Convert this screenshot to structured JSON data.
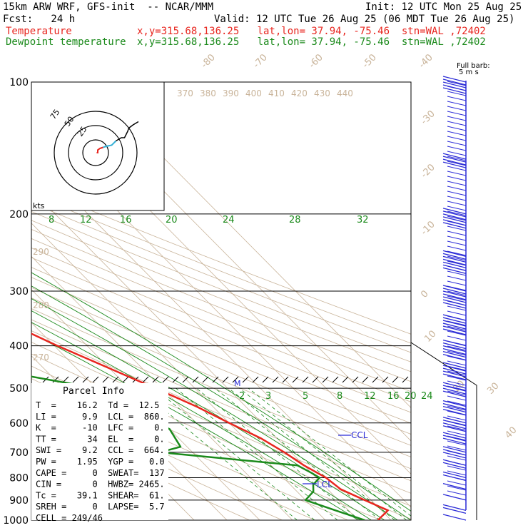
{
  "header": {
    "model": "15km ARW WRF, GFS-init  -- NCAR/MMM",
    "init": "Init: 12 UTC Mon 25 Aug 25",
    "fcst": "Fcst:   24 h",
    "valid": "Valid: 12 UTC Tue 26 Aug 25 (06 MDT Tue 26 Aug 25)",
    "temp_label": "Temperature",
    "temp_loc": "x,y=315.68,136.25   lat,lon= 37.94, -75.46  stn=WAL ,72402",
    "dew_label": "Dewpoint temperature",
    "dew_loc": "x,y=315.68,136.25   lat,lon= 37.94, -75.46  stn=WAL ,72402",
    "barb_note_1": "Full barb:",
    "barb_note_2": "5 m s",
    "hodo_units": "kts",
    "ccl_label": "CCL",
    "lcl_label": "LCL",
    "m_label": "M"
  },
  "colors": {
    "temperature": "#e8261f",
    "dewpoint": "#1b8a1b",
    "isotherm": "#c9b49a",
    "wind": "#2a2ad6",
    "hodograph": "#000000"
  },
  "parcel_info": {
    "title": "Parcel Info",
    "rows": [
      "T  =    16.2  Td =  12.5",
      "LI =     9.9  LCL =  860.",
      "K  =     -10  LFC =    0.",
      "TT =      34  EL  =    0.",
      "SWI =    9.2  CCL =  664.",
      "PW =    1.95  YGP =   0.0",
      "CAPE =     0  SWEAT=  137",
      "CIN =      0  HWBZ= 2465.",
      "Tc =    39.1  SHEAR=  61.",
      "SREH =     0  LAPSE=  5.7",
      "CELL = 249/46"
    ]
  },
  "chart_data": {
    "type": "line",
    "pressure_levels": [
      100,
      200,
      300,
      400,
      500,
      600,
      700,
      800,
      900,
      1000
    ],
    "isotherm_labels": [
      -80,
      -70,
      -60,
      -50,
      -40,
      -30,
      -20,
      -10,
      0,
      10,
      20,
      30,
      40
    ],
    "theta_labels_top": [
      370,
      380,
      390,
      400,
      410,
      420,
      430,
      440
    ],
    "theta_labels_left": [
      290,
      280,
      270
    ],
    "mixing_ratio_labels_200": [
      8,
      12,
      16,
      20,
      24,
      28,
      32
    ],
    "mixing_ratio_labels_500": [
      2,
      3,
      5,
      8,
      12,
      16,
      20,
      24
    ],
    "hodograph_ring_labels": [
      75,
      50,
      25
    ],
    "series": [
      {
        "name": "Temperature",
        "pressure": [
          100,
          120,
          150,
          175,
          200,
          220,
          260,
          300,
          350,
          400,
          450,
          500,
          550,
          600,
          650,
          700,
          750,
          800,
          850,
          900,
          950,
          1000
        ],
        "values": [
          -64,
          -62,
          -63,
          -64,
          -62,
          -60,
          -54,
          -47,
          -38,
          -29,
          -20,
          -12,
          -5,
          0,
          5,
          8,
          10,
          13,
          14,
          18,
          22,
          16
        ]
      },
      {
        "name": "Dewpoint temperature",
        "pressure": [
          100,
          130,
          170,
          200,
          230,
          260,
          300,
          330,
          360,
          380,
          400,
          430,
          460,
          500,
          560,
          620,
          680,
          700,
          750,
          780,
          800,
          830,
          860,
          900,
          950,
          1000
        ],
        "values": [
          -86,
          -87,
          -88,
          -82,
          -77,
          -67,
          -57,
          -48,
          -37,
          -36,
          -48,
          -56,
          -52,
          -30,
          -25,
          -20,
          -22,
          -30,
          8,
          10,
          11,
          7,
          5,
          0,
          6,
          12
        ]
      }
    ],
    "wind_levels": [
      100,
      150,
      200,
      250,
      300,
      350,
      400,
      450,
      500,
      550,
      600,
      650,
      700,
      750,
      800,
      850,
      900,
      950,
      1000
    ],
    "wind_speed_ms": [
      25,
      22,
      30,
      33,
      35,
      32,
      28,
      26,
      22,
      20,
      18,
      16,
      14,
      12,
      8,
      6,
      7,
      10,
      4
    ],
    "hodograph": {
      "u_kts": [
        2,
        4,
        4,
        8,
        14,
        20,
        30,
        38,
        48,
        54,
        60,
        62,
        70,
        80
      ],
      "v_kts": [
        0,
        0,
        5,
        8,
        10,
        12,
        14,
        22,
        28,
        28,
        40,
        46,
        52,
        58
      ]
    }
  }
}
